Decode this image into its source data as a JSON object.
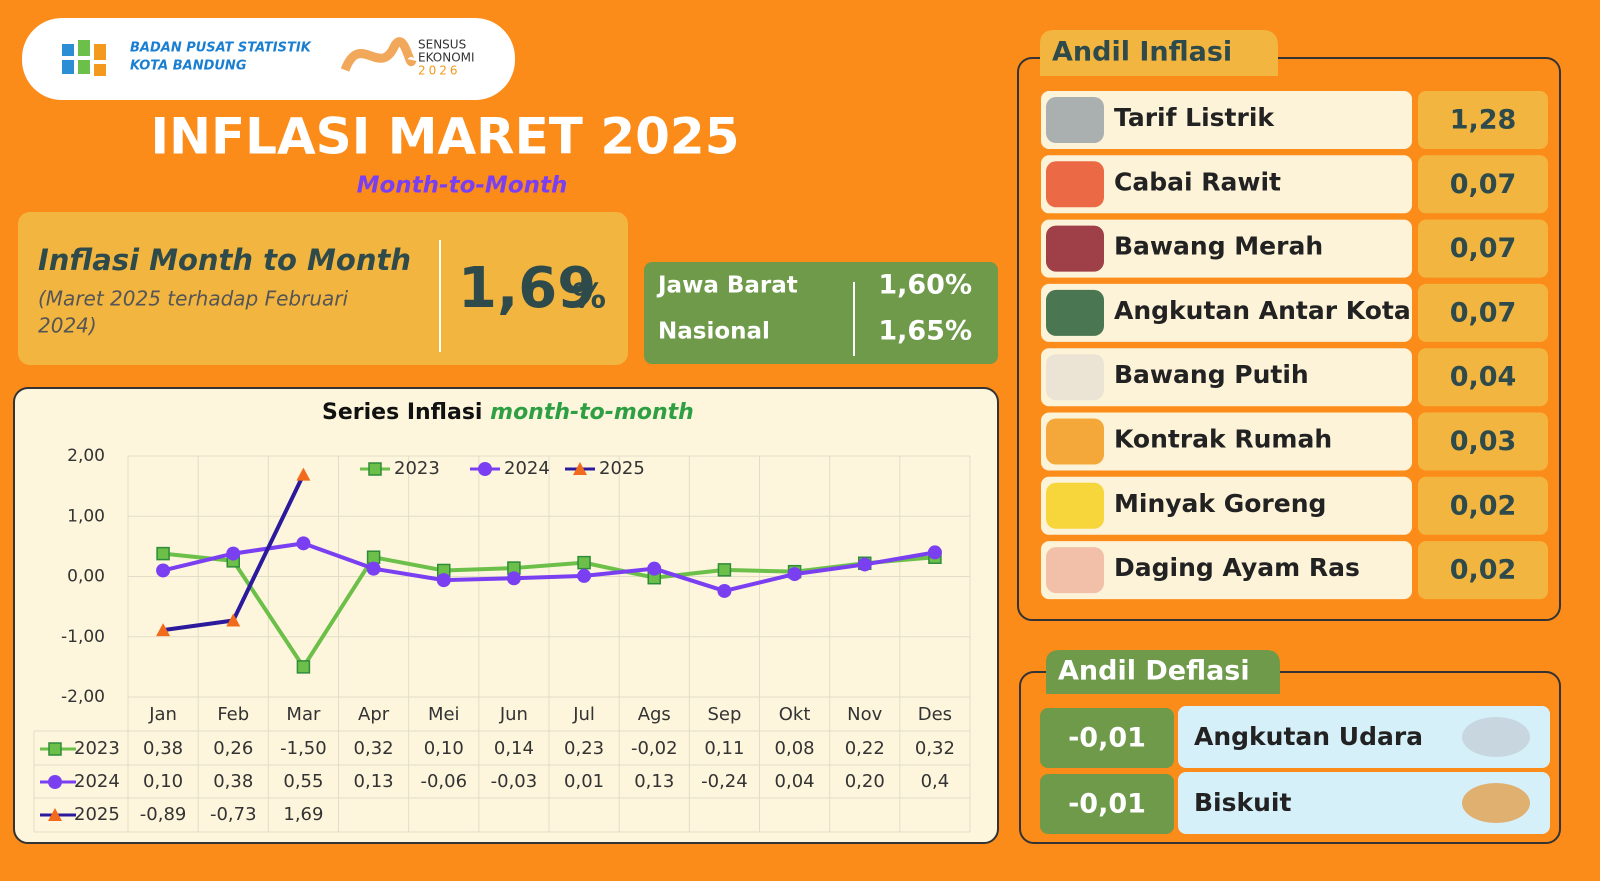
{
  "header": {
    "org_line1": "BADAN PUSAT STATISTIK",
    "org_line2": "KOTA BANDUNG",
    "sensus_line1": "SENSUS",
    "sensus_line2": "EKONOMI",
    "sensus_line3": "2026"
  },
  "title": "INFLASI MARET 2025",
  "subtitle": "Month-to-Month",
  "mtm": {
    "label": "Inflasi Month to Month",
    "note_line1": "(Maret 2025 terhadap Februari",
    "note_line2": "2024)",
    "value": "1,69",
    "unit": "%"
  },
  "comparison": [
    {
      "region": "Jawa Barat",
      "value": "1,60%"
    },
    {
      "region": "Nasional",
      "value": "1,65%"
    }
  ],
  "chart_data": {
    "type": "line",
    "title": "Series Inflasi",
    "title_em": "month-to-month",
    "categories": [
      "Jan",
      "Feb",
      "Mar",
      "Apr",
      "Mei",
      "Jun",
      "Jul",
      "Ags",
      "Sep",
      "Okt",
      "Nov",
      "Des"
    ],
    "series": [
      {
        "name": "2023",
        "color": "#6cc04a",
        "marker": "square",
        "values": [
          0.38,
          0.26,
          -1.5,
          0.32,
          0.1,
          0.14,
          0.23,
          -0.02,
          0.11,
          0.08,
          0.22,
          0.32
        ],
        "value_labels": [
          "0,38",
          "0,26",
          "-1,50",
          "0,32",
          "0,10",
          "0,14",
          "0,23",
          "-0,02",
          "0,11",
          "0,08",
          "0,22",
          "0,32"
        ]
      },
      {
        "name": "2024",
        "color": "#7b3ff2",
        "marker": "circle",
        "values": [
          0.1,
          0.38,
          0.55,
          0.13,
          -0.06,
          -0.03,
          0.01,
          0.13,
          -0.24,
          0.04,
          0.2,
          0.4
        ],
        "value_labels": [
          "0,10",
          "0,38",
          "0,55",
          "0,13",
          "-0,06",
          "-0,03",
          "0,01",
          "0,13",
          "-0,24",
          "0,04",
          "0,20",
          "0,4"
        ]
      },
      {
        "name": "2025",
        "color": "#2b1a9c",
        "marker": "triangle",
        "marker_color": "#f26a1b",
        "values": [
          -0.89,
          -0.73,
          1.69,
          null,
          null,
          null,
          null,
          null,
          null,
          null,
          null,
          null
        ],
        "value_labels": [
          "-0,89",
          "-0,73",
          "1,69",
          null,
          null,
          null,
          null,
          null,
          null,
          null,
          null,
          null
        ]
      }
    ],
    "ylim": [
      -2,
      2
    ],
    "yticks": [
      {
        "value": -2,
        "label": "-2,00"
      },
      {
        "value": -1,
        "label": "-1,00"
      },
      {
        "value": 0,
        "label": "0,00"
      },
      {
        "value": 1,
        "label": "1,00"
      },
      {
        "value": 2,
        "label": "2,00"
      }
    ],
    "grid": true,
    "legend": "top"
  },
  "andil_inflasi": {
    "title": "Andil Inflasi",
    "items": [
      {
        "name": "Tarif Listrik",
        "value": "1,28"
      },
      {
        "name": "Cabai Rawit",
        "value": "0,07"
      },
      {
        "name": "Bawang Merah",
        "value": "0,07"
      },
      {
        "name": "Angkutan Antar Kota",
        "value": "0,07"
      },
      {
        "name": "Bawang Putih",
        "value": "0,04"
      },
      {
        "name": "Kontrak Rumah",
        "value": "0,03"
      },
      {
        "name": "Minyak Goreng",
        "value": "0,02"
      },
      {
        "name": "Daging Ayam Ras",
        "value": "0,02"
      }
    ]
  },
  "andil_deflasi": {
    "title": "Andil Deflasi",
    "items": [
      {
        "name": "Angkutan Udara",
        "value": "-0,01"
      },
      {
        "name": "Biskuit",
        "value": "-0,01"
      }
    ]
  }
}
